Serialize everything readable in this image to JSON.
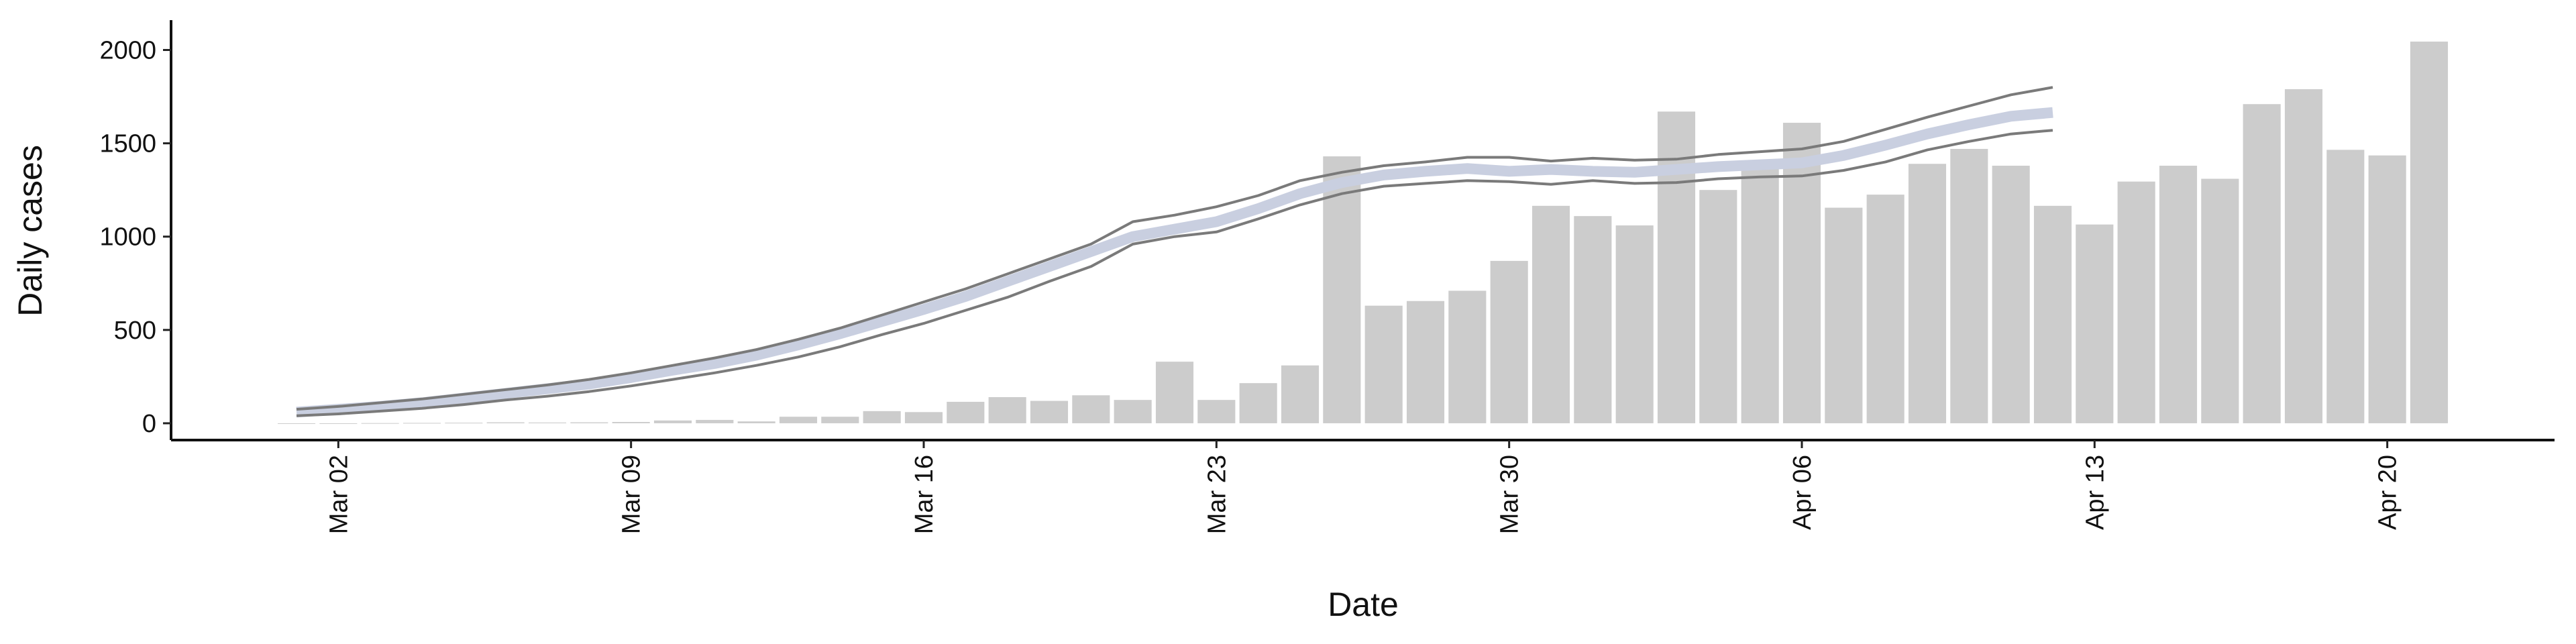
{
  "chart_data": {
    "type": "bar",
    "xlabel": "Date",
    "ylabel": "Daily cases",
    "x": [
      "Mar 01",
      "Mar 02",
      "Mar 03",
      "Mar 04",
      "Mar 05",
      "Mar 06",
      "Mar 07",
      "Mar 08",
      "Mar 09",
      "Mar 10",
      "Mar 11",
      "Mar 12",
      "Mar 13",
      "Mar 14",
      "Mar 15",
      "Mar 16",
      "Mar 17",
      "Mar 18",
      "Mar 19",
      "Mar 20",
      "Mar 21",
      "Mar 22",
      "Mar 23",
      "Mar 24",
      "Mar 25",
      "Mar 26",
      "Mar 27",
      "Mar 28",
      "Mar 29",
      "Mar 30",
      "Mar 31",
      "Apr 01",
      "Apr 02",
      "Apr 03",
      "Apr 04",
      "Apr 05",
      "Apr 06",
      "Apr 07",
      "Apr 08",
      "Apr 09",
      "Apr 10",
      "Apr 11",
      "Apr 12",
      "Apr 13",
      "Apr 14",
      "Apr 15",
      "Apr 16",
      "Apr 17",
      "Apr 18",
      "Apr 19",
      "Apr 20",
      "Apr 21"
    ],
    "values": [
      0,
      0,
      1,
      2,
      3,
      5,
      4,
      5,
      7,
      15,
      18,
      10,
      35,
      35,
      65,
      60,
      115,
      140,
      120,
      150,
      125,
      330,
      125,
      215,
      310,
      1430,
      630,
      655,
      710,
      870,
      1165,
      1110,
      1060,
      1670,
      1250,
      1370,
      1610,
      1155,
      1225,
      1390,
      1470,
      1380,
      1165,
      1065,
      1295,
      1380,
      1310,
      1710,
      1790,
      1465,
      1435,
      2045
    ],
    "color": "#cccccc",
    "lines": {
      "x": [
        "Mar 01",
        "Mar 02",
        "Mar 03",
        "Mar 04",
        "Mar 05",
        "Mar 06",
        "Mar 07",
        "Mar 08",
        "Mar 09",
        "Mar 10",
        "Mar 11",
        "Mar 12",
        "Mar 13",
        "Mar 14",
        "Mar 15",
        "Mar 16",
        "Mar 17",
        "Mar 18",
        "Mar 19",
        "Mar 20",
        "Mar 21",
        "Mar 22",
        "Mar 23",
        "Mar 24",
        "Mar 25",
        "Mar 26",
        "Mar 27",
        "Mar 28",
        "Mar 29",
        "Mar 30",
        "Mar 31",
        "Apr 01",
        "Apr 02",
        "Apr 03",
        "Apr 04",
        "Apr 05",
        "Apr 06",
        "Apr 07",
        "Apr 08",
        "Apr 09",
        "Apr 10",
        "Apr 11",
        "Apr 12"
      ],
      "series": [
        {
          "color": "#c9cfe0",
          "values": [
            60,
            75,
            90,
            110,
            135,
            160,
            185,
            210,
            245,
            285,
            320,
            365,
            420,
            480,
            545,
            610,
            680,
            760,
            840,
            920,
            1000,
            1040,
            1080,
            1150,
            1230,
            1290,
            1330,
            1350,
            1365,
            1350,
            1360,
            1350,
            1345,
            1360,
            1375,
            1385,
            1395,
            1435,
            1490,
            1550,
            1600,
            1645,
            1665
          ]
        },
        {
          "color": "#7a7a7a",
          "values": [
            75,
            90,
            110,
            130,
            155,
            180,
            205,
            235,
            270,
            310,
            350,
            395,
            450,
            510,
            580,
            650,
            720,
            800,
            880,
            960,
            1080,
            1115,
            1160,
            1220,
            1300,
            1345,
            1380,
            1400,
            1425,
            1425,
            1405,
            1420,
            1410,
            1415,
            1440,
            1455,
            1470,
            1510,
            1575,
            1640,
            1700,
            1760,
            1800
          ]
        },
        {
          "color": "#7a7a7a",
          "values": [
            40,
            50,
            65,
            80,
            100,
            125,
            145,
            170,
            200,
            235,
            270,
            310,
            355,
            410,
            475,
            535,
            605,
            675,
            760,
            840,
            960,
            1000,
            1025,
            1095,
            1170,
            1230,
            1270,
            1285,
            1300,
            1295,
            1280,
            1300,
            1285,
            1290,
            1310,
            1320,
            1325,
            1355,
            1400,
            1465,
            1510,
            1550,
            1570
          ]
        }
      ]
    },
    "xlim": [
      "Feb 27",
      "Apr 24"
    ],
    "xticks": [
      "Mar 02",
      "Mar 09",
      "Mar 16",
      "Mar 23",
      "Mar 30",
      "Apr 06",
      "Apr 13",
      "Apr 20"
    ],
    "ylim": [
      -90,
      2160
    ],
    "yticks": [
      0,
      500,
      1000,
      1500,
      2000
    ]
  }
}
